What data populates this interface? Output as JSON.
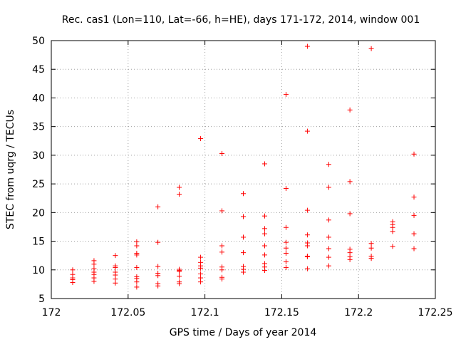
{
  "chart_data": {
    "type": "scatter",
    "title": "Rec. cas1 (Lon=110, Lat=-66, h=HE), days 171-172, 2014, window 001",
    "xlabel": "GPS time / Days of year 2014",
    "ylabel": "STEC from uqrg / TECUs",
    "xlim": [
      172,
      172.25
    ],
    "ylim": [
      5,
      50
    ],
    "xticks": [
      "172",
      "172.05",
      "172.1",
      "172.15",
      "172.2",
      "172.25"
    ],
    "xtick_values": [
      172,
      172.05,
      172.1,
      172.15,
      172.2,
      172.25
    ],
    "yticks": [
      "5",
      "10",
      "15",
      "20",
      "25",
      "30",
      "35",
      "40",
      "45",
      "50"
    ],
    "ytick_values": [
      5,
      10,
      15,
      20,
      25,
      30,
      35,
      40,
      45,
      50
    ],
    "grid": true,
    "marker": "+",
    "color": "#ff0000",
    "series": [
      {
        "name": "STEC",
        "points": [
          [
            172.0139,
            10.0
          ],
          [
            172.0139,
            9.2
          ],
          [
            172.0139,
            8.6
          ],
          [
            172.0139,
            8.3
          ],
          [
            172.0139,
            7.8
          ],
          [
            172.0278,
            11.6
          ],
          [
            172.0278,
            11.0
          ],
          [
            172.0278,
            10.2
          ],
          [
            172.0278,
            9.6
          ],
          [
            172.0278,
            9.2
          ],
          [
            172.0278,
            8.6
          ],
          [
            172.0278,
            8.0
          ],
          [
            172.0417,
            12.5
          ],
          [
            172.0417,
            10.7
          ],
          [
            172.0417,
            10.4
          ],
          [
            172.0417,
            9.6
          ],
          [
            172.0417,
            9.1
          ],
          [
            172.0417,
            8.4
          ],
          [
            172.0417,
            7.7
          ],
          [
            172.0556,
            14.9
          ],
          [
            172.0556,
            14.2
          ],
          [
            172.0556,
            12.9
          ],
          [
            172.0556,
            12.6
          ],
          [
            172.0556,
            10.4
          ],
          [
            172.0556,
            8.8
          ],
          [
            172.0556,
            8.5
          ],
          [
            172.0556,
            7.9
          ],
          [
            172.0556,
            7.0
          ],
          [
            172.0694,
            21.0
          ],
          [
            172.0694,
            14.8
          ],
          [
            172.0694,
            10.6
          ],
          [
            172.0694,
            9.4
          ],
          [
            172.0694,
            9.0
          ],
          [
            172.0694,
            7.6
          ],
          [
            172.0694,
            7.2
          ],
          [
            172.0833,
            24.4
          ],
          [
            172.0833,
            23.2
          ],
          [
            172.0833,
            10.1
          ],
          [
            172.0833,
            9.9
          ],
          [
            172.0833,
            9.7
          ],
          [
            172.0833,
            8.9
          ],
          [
            172.0833,
            7.9
          ],
          [
            172.0833,
            7.6
          ],
          [
            172.0972,
            32.9
          ],
          [
            172.0972,
            12.2
          ],
          [
            172.0972,
            11.3
          ],
          [
            172.0972,
            10.7
          ],
          [
            172.0972,
            10.3
          ],
          [
            172.0972,
            9.3
          ],
          [
            172.0972,
            8.6
          ],
          [
            172.0972,
            7.9
          ],
          [
            172.1111,
            30.3
          ],
          [
            172.1111,
            20.3
          ],
          [
            172.1111,
            14.2
          ],
          [
            172.1111,
            13.1
          ],
          [
            172.1111,
            10.5
          ],
          [
            172.1111,
            10.0
          ],
          [
            172.1111,
            8.7
          ],
          [
            172.1111,
            8.4
          ],
          [
            172.125,
            23.3
          ],
          [
            172.125,
            19.3
          ],
          [
            172.125,
            15.7
          ],
          [
            172.125,
            13.0
          ],
          [
            172.125,
            10.6
          ],
          [
            172.125,
            10.1
          ],
          [
            172.125,
            9.6
          ],
          [
            172.1389,
            28.5
          ],
          [
            172.1389,
            19.4
          ],
          [
            172.1389,
            17.2
          ],
          [
            172.1389,
            16.3
          ],
          [
            172.1389,
            14.2
          ],
          [
            172.1389,
            12.6
          ],
          [
            172.1389,
            11.1
          ],
          [
            172.1389,
            10.5
          ],
          [
            172.1389,
            9.9
          ],
          [
            172.1528,
            40.6
          ],
          [
            172.1528,
            24.2
          ],
          [
            172.1528,
            17.4
          ],
          [
            172.1528,
            14.8
          ],
          [
            172.1528,
            13.8
          ],
          [
            172.1528,
            12.9
          ],
          [
            172.1528,
            11.4
          ],
          [
            172.1528,
            10.4
          ],
          [
            172.1667,
            49.0
          ],
          [
            172.1667,
            34.2
          ],
          [
            172.1667,
            20.4
          ],
          [
            172.1667,
            16.1
          ],
          [
            172.1667,
            14.7
          ],
          [
            172.1667,
            14.2
          ],
          [
            172.1667,
            12.4
          ],
          [
            172.1667,
            12.3
          ],
          [
            172.1667,
            10.2
          ],
          [
            172.1806,
            28.4
          ],
          [
            172.1806,
            24.4
          ],
          [
            172.1806,
            18.7
          ],
          [
            172.1806,
            15.7
          ],
          [
            172.1806,
            13.7
          ],
          [
            172.1806,
            12.2
          ],
          [
            172.1806,
            10.7
          ],
          [
            172.1944,
            37.9
          ],
          [
            172.1944,
            25.4
          ],
          [
            172.1944,
            19.8
          ],
          [
            172.1944,
            13.6
          ],
          [
            172.1944,
            13.0
          ],
          [
            172.1944,
            12.3
          ],
          [
            172.1944,
            11.8
          ],
          [
            172.2083,
            48.6
          ],
          [
            172.2083,
            14.6
          ],
          [
            172.2083,
            13.8
          ],
          [
            172.2083,
            12.4
          ],
          [
            172.2083,
            12.0
          ],
          [
            172.2222,
            18.4
          ],
          [
            172.2222,
            17.9
          ],
          [
            172.2222,
            17.4
          ],
          [
            172.2222,
            16.7
          ],
          [
            172.2222,
            14.1
          ],
          [
            172.2361,
            30.2
          ],
          [
            172.2361,
            22.7
          ],
          [
            172.2361,
            19.5
          ],
          [
            172.2361,
            16.3
          ],
          [
            172.2361,
            13.7
          ]
        ]
      }
    ]
  }
}
